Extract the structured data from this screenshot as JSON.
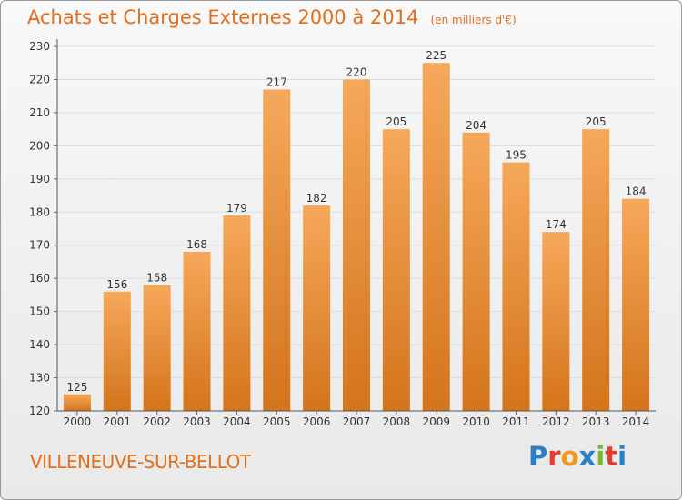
{
  "header": {
    "title": "Achats et Charges Externes 2000 à 2014",
    "unit": "(en milliers d'€)"
  },
  "footer": {
    "place": "VILLENEUVE-SUR-BELLOT",
    "logo_text": "Proxiti",
    "logo_colors": [
      "#2b7fc6",
      "#e53a2f",
      "#f29a1f",
      "#2b7fc6",
      "#7ab833",
      "#e53a2f",
      "#2b7fc6"
    ]
  },
  "colors": {
    "bar_top": "#f6a85a",
    "bar_bottom": "#d4741b",
    "text": "#e0701f",
    "grid": "#dcdcdc"
  },
  "chart_data": {
    "type": "bar",
    "title": "Achats et Charges Externes 2000 à 2014",
    "subtitle": "(en milliers d'€)",
    "categories": [
      "2000",
      "2001",
      "2002",
      "2003",
      "2004",
      "2005",
      "2006",
      "2007",
      "2008",
      "2009",
      "2010",
      "2011",
      "2012",
      "2013",
      "2014"
    ],
    "values": [
      125,
      156,
      158,
      168,
      179,
      217,
      182,
      220,
      205,
      225,
      204,
      195,
      174,
      205,
      184
    ],
    "ylim": [
      120,
      230
    ],
    "yticks": [
      120,
      130,
      140,
      150,
      160,
      170,
      180,
      190,
      200,
      210,
      220,
      230
    ],
    "grid": true,
    "legend": "none",
    "data_labels": true
  }
}
